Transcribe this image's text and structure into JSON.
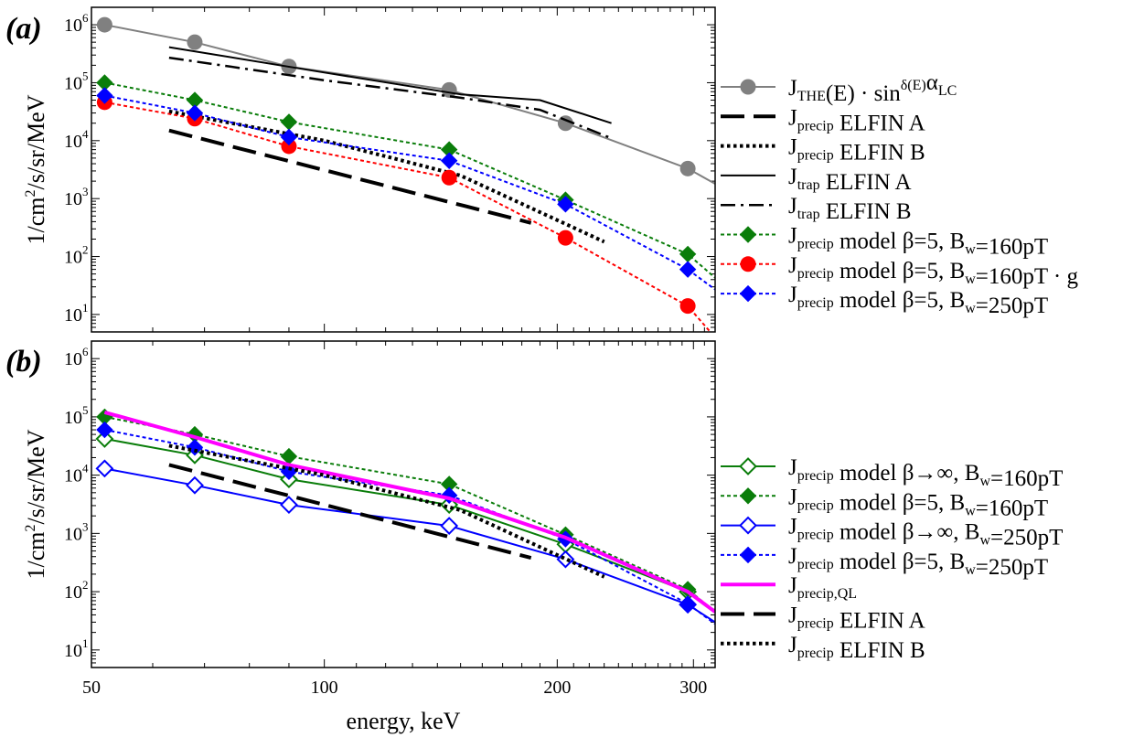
{
  "figure": {
    "xlabel": "energy, keV",
    "ylabel": "1/cm²/s/sr/MeV",
    "ylabel_parts": [
      "1/cm",
      "2",
      "/s/sr/MeV"
    ],
    "x_scale": "log",
    "y_scale": "log",
    "xlim": [
      50,
      320
    ],
    "ylim": [
      5,
      2000000
    ],
    "x_ticks": [
      50,
      100,
      200,
      300
    ],
    "x_tick_labels": [
      "50",
      "100",
      "200",
      "300"
    ],
    "y_ticks": [
      10,
      100,
      1000,
      10000,
      100000,
      1000000
    ],
    "y_tick_exps": [
      "1",
      "2",
      "3",
      "4",
      "5",
      "6"
    ],
    "y_tick_base": "10"
  },
  "colors": {
    "gray": "#808080",
    "black": "#000000",
    "green": "#0a7d0a",
    "red": "#ff0000",
    "blue": "#0000ff",
    "magenta": "#ff00ff"
  },
  "chart_data": [
    {
      "type": "line",
      "panel_label": "(a)",
      "xlabel": "",
      "ylabel": "1/cm²/s/sr/MeV",
      "series": [
        {
          "key": "the",
          "name": "J_THE(E)·sin^δ(E) α_LC",
          "color": "#808080",
          "style": "solid",
          "marker": "circle",
          "x": [
            52,
            68,
            90,
            145,
            205,
            295,
            320
          ],
          "y": [
            1000000,
            500000,
            190000,
            75000,
            20000,
            3300,
            1800
          ]
        },
        {
          "key": "pA",
          "name": "J_precip ELFIN A",
          "color": "#000000",
          "style": "longdash",
          "marker": "none",
          "x": [
            63,
            185
          ],
          "y": [
            15000,
            380
          ]
        },
        {
          "key": "pB",
          "name": "J_precip ELFIN B",
          "color": "#000000",
          "style": "dot",
          "marker": "none",
          "x": [
            63,
            100,
            150,
            230
          ],
          "y": [
            32000,
            10000,
            2500,
            180
          ]
        },
        {
          "key": "tA",
          "name": "J_trap ELFIN A",
          "color": "#000000",
          "style": "solid",
          "marker": "none",
          "x": [
            63,
            100,
            150,
            190,
            235
          ],
          "y": [
            410000,
            150000,
            63000,
            50000,
            20000
          ]
        },
        {
          "key": "tB",
          "name": "J_trap ELFIN B",
          "color": "#000000",
          "style": "dashdot",
          "marker": "none",
          "x": [
            63,
            100,
            150,
            190,
            235
          ],
          "y": [
            270000,
            110000,
            55000,
            34000,
            11000
          ]
        },
        {
          "key": "g160",
          "name": "J_precip model β=5, B_w=160pT",
          "color": "#0a7d0a",
          "style": "dash",
          "marker": "diamond",
          "x": [
            52,
            68,
            90,
            145,
            205,
            295,
            320
          ],
          "y": [
            100000,
            50000,
            21000,
            7000,
            950,
            110,
            43
          ]
        },
        {
          "key": "r160g",
          "name": "J_precip model β=5, B_w=160pT·g",
          "color": "#ff0000",
          "style": "dash",
          "marker": "circle",
          "x": [
            52,
            68,
            90,
            145,
            205,
            295,
            320
          ],
          "y": [
            46000,
            24000,
            8000,
            2300,
            210,
            14,
            4
          ]
        },
        {
          "key": "b250",
          "name": "J_precip model β=5, B_w=250pT",
          "color": "#0000ff",
          "style": "dash",
          "marker": "diamond",
          "x": [
            52,
            68,
            90,
            145,
            205,
            295,
            320
          ],
          "y": [
            60000,
            30000,
            11500,
            4500,
            800,
            60,
            27
          ]
        }
      ]
    },
    {
      "type": "line",
      "panel_label": "(b)",
      "xlabel": "energy, keV",
      "ylabel": "1/cm²/s/sr/MeV",
      "series": [
        {
          "key": "gInf",
          "name": "J_precip model β→∞, B_w=160pT",
          "color": "#0a7d0a",
          "style": "solid",
          "marker": "diamond-open",
          "x": [
            52,
            68,
            90,
            145,
            205,
            295,
            320
          ],
          "y": [
            42000,
            22000,
            8500,
            3100,
            650,
            100,
            47
          ]
        },
        {
          "key": "g5",
          "name": "J_precip model β=5, B_w=160pT",
          "color": "#0a7d0a",
          "style": "dash",
          "marker": "diamond",
          "x": [
            52,
            68,
            90,
            145,
            205,
            295,
            320
          ],
          "y": [
            100000,
            50000,
            21000,
            7000,
            950,
            110,
            45
          ]
        },
        {
          "key": "bInf",
          "name": "J_precip model β→∞, B_w=250pT",
          "color": "#0000ff",
          "style": "solid",
          "marker": "diamond-open",
          "x": [
            52,
            68,
            90,
            145,
            205,
            295,
            320
          ],
          "y": [
            13000,
            6700,
            3100,
            1350,
            360,
            60,
            30
          ]
        },
        {
          "key": "b5",
          "name": "J_precip model β=5, B_w=250pT",
          "color": "#0000ff",
          "style": "dash",
          "marker": "diamond",
          "x": [
            52,
            68,
            90,
            145,
            205,
            295,
            320
          ],
          "y": [
            60000,
            30000,
            11500,
            4500,
            800,
            62,
            28
          ]
        },
        {
          "key": "ql",
          "name": "J_precip,QL",
          "color": "#ff00ff",
          "style": "thick",
          "marker": "none",
          "x": [
            52,
            68,
            90,
            145,
            205,
            295,
            320
          ],
          "y": [
            120000,
            45000,
            15000,
            4000,
            850,
            100,
            45
          ]
        },
        {
          "key": "pA",
          "name": "J_precip ELFIN A",
          "color": "#000000",
          "style": "longdash",
          "marker": "none",
          "x": [
            63,
            185
          ],
          "y": [
            15000,
            380
          ]
        },
        {
          "key": "pB",
          "name": "J_precip ELFIN B",
          "color": "#000000",
          "style": "dot",
          "marker": "none",
          "x": [
            63,
            100,
            150,
            230
          ],
          "y": [
            32000,
            10000,
            2500,
            180
          ]
        }
      ]
    }
  ],
  "legends": [
    {
      "panel": 0,
      "entries": [
        {
          "series": "the",
          "parts": [
            [
              "J",
              ""
            ],
            [
              "THE",
              "sub"
            ],
            [
              "(E) · sin",
              ""
            ],
            [
              "δ(E)",
              "sup"
            ],
            [
              "α",
              ""
            ],
            [
              "LC",
              "sub"
            ]
          ]
        },
        {
          "series": "pA",
          "parts": [
            [
              "J",
              ""
            ],
            [
              "precip",
              "sub"
            ],
            [
              " ELFIN A",
              ""
            ]
          ]
        },
        {
          "series": "pB",
          "parts": [
            [
              "J",
              ""
            ],
            [
              "precip",
              "sub"
            ],
            [
              " ELFIN B",
              ""
            ]
          ]
        },
        {
          "series": "tA",
          "parts": [
            [
              "J",
              ""
            ],
            [
              "trap",
              "sub"
            ],
            [
              " ELFIN A",
              ""
            ]
          ]
        },
        {
          "series": "tB",
          "parts": [
            [
              "J",
              ""
            ],
            [
              "trap",
              "sub"
            ],
            [
              " ELFIN B",
              ""
            ]
          ]
        },
        {
          "series": "g160",
          "parts": [
            [
              "J",
              ""
            ],
            [
              "precip",
              "sub"
            ],
            [
              " model β=5, B",
              ""
            ],
            [
              "w",
              "sub"
            ],
            [
              "=160pT",
              ""
            ]
          ]
        },
        {
          "series": "r160g",
          "parts": [
            [
              "J",
              ""
            ],
            [
              "precip",
              "sub"
            ],
            [
              " model β=5, B",
              ""
            ],
            [
              "w",
              "sub"
            ],
            [
              "=160pT · g",
              ""
            ]
          ]
        },
        {
          "series": "b250",
          "parts": [
            [
              "J",
              ""
            ],
            [
              "precip",
              "sub"
            ],
            [
              " model β=5, B",
              ""
            ],
            [
              "w",
              "sub"
            ],
            [
              "=250pT",
              ""
            ]
          ]
        }
      ]
    },
    {
      "panel": 1,
      "entries": [
        {
          "series": "gInf",
          "parts": [
            [
              "J",
              ""
            ],
            [
              "precip",
              "sub"
            ],
            [
              " model β→∞, B",
              ""
            ],
            [
              "w",
              "sub"
            ],
            [
              "=160pT",
              ""
            ]
          ]
        },
        {
          "series": "g5",
          "parts": [
            [
              "J",
              ""
            ],
            [
              "precip",
              "sub"
            ],
            [
              " model β=5, B",
              ""
            ],
            [
              "w",
              "sub"
            ],
            [
              "=160pT",
              ""
            ]
          ]
        },
        {
          "series": "bInf",
          "parts": [
            [
              "J",
              ""
            ],
            [
              "precip",
              "sub"
            ],
            [
              " model β→∞, B",
              ""
            ],
            [
              "w",
              "sub"
            ],
            [
              "=250pT",
              ""
            ]
          ]
        },
        {
          "series": "b5",
          "parts": [
            [
              "J",
              ""
            ],
            [
              "precip",
              "sub"
            ],
            [
              " model β=5, B",
              ""
            ],
            [
              "w",
              "sub"
            ],
            [
              "=250pT",
              ""
            ]
          ]
        },
        {
          "series": "ql",
          "parts": [
            [
              "J",
              ""
            ],
            [
              "precip,QL",
              "sub"
            ]
          ]
        },
        {
          "series": "pA",
          "parts": [
            [
              "J",
              ""
            ],
            [
              "precip",
              "sub"
            ],
            [
              " ELFIN A",
              ""
            ]
          ]
        },
        {
          "series": "pB",
          "parts": [
            [
              "J",
              ""
            ],
            [
              "precip",
              "sub"
            ],
            [
              " ELFIN B",
              ""
            ]
          ]
        }
      ]
    }
  ]
}
